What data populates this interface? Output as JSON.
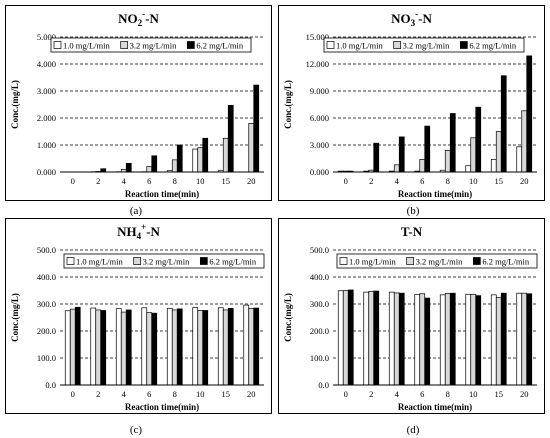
{
  "legend_labels": [
    "1.0 mg/L/min",
    "3.2 mg/L/min",
    "6.2 mg/L/min"
  ],
  "series_fills": [
    "#ffffff",
    "#d9d9d9",
    "#000000"
  ],
  "chart_data": [
    {
      "type": "bar",
      "title": "NO",
      "title_sub": "2",
      "title_sup": "-",
      "title_tail": "-N",
      "caption": "(a)",
      "xlabel": "Reaction time(min)",
      "ylabel": "Conc.(mg/L)",
      "categories": [
        "0",
        "2",
        "4",
        "6",
        "8",
        "10",
        "15",
        "20"
      ],
      "ylim": [
        0,
        5
      ],
      "yticks": [
        "0.000",
        "1.000",
        "2.000",
        "3.000",
        "4.000",
        "5.000"
      ],
      "grid": true,
      "legend_placement": "top-left",
      "series": [
        {
          "name": "1.0 mg/L/min",
          "values": [
            0.0,
            0.01,
            0.01,
            0.01,
            0.05,
            0.85,
            0.05,
            0.0
          ]
        },
        {
          "name": "3.2 mg/L/min",
          "values": [
            0.0,
            0.02,
            0.1,
            0.2,
            0.45,
            0.9,
            1.25,
            1.8
          ]
        },
        {
          "name": "6.2 mg/L/min",
          "values": [
            0.0,
            0.12,
            0.32,
            0.6,
            1.0,
            1.25,
            2.47,
            3.22
          ]
        }
      ]
    },
    {
      "type": "bar",
      "title": "NO",
      "title_sub": "3",
      "title_sup": "-",
      "title_tail": "-N",
      "caption": "(b)",
      "xlabel": "Reaction time(min)",
      "ylabel": "Conc.(mg/L)",
      "categories": [
        "0",
        "2",
        "4",
        "6",
        "8",
        "10",
        "15",
        "20"
      ],
      "ylim": [
        0,
        15
      ],
      "yticks": [
        "0.000",
        "3.000",
        "6.000",
        "9.000",
        "12.000",
        "15.000"
      ],
      "grid": true,
      "legend_placement": "top-left",
      "series": [
        {
          "name": "1.0 mg/L/min",
          "values": [
            0.1,
            0.1,
            0.1,
            0.1,
            0.2,
            0.7,
            1.4,
            2.8
          ]
        },
        {
          "name": "3.2 mg/L/min",
          "values": [
            0.1,
            0.2,
            0.8,
            1.4,
            2.4,
            3.8,
            4.5,
            6.8
          ]
        },
        {
          "name": "6.2 mg/L/min",
          "values": [
            0.1,
            3.2,
            3.9,
            5.1,
            6.5,
            7.2,
            10.7,
            12.9
          ]
        }
      ]
    },
    {
      "type": "bar",
      "title": "NH",
      "title_sub": "4",
      "title_sup": "+",
      "title_tail": "-N",
      "caption": "(c)",
      "xlabel": "Reaction time(min)",
      "ylabel": "Conc.(mg/L)",
      "categories": [
        "0",
        "2",
        "4",
        "6",
        "8",
        "10",
        "15",
        "20"
      ],
      "ylim": [
        0,
        500
      ],
      "yticks": [
        "0.0",
        "100.0",
        "200.0",
        "300.0",
        "400.0",
        "500.0"
      ],
      "grid": true,
      "legend_placement": "top",
      "series": [
        {
          "name": "1.0 mg/L/min",
          "values": [
            275,
            285,
            283,
            286,
            284,
            287,
            286,
            296
          ]
        },
        {
          "name": "3.2 mg/L/min",
          "values": [
            281,
            278,
            270,
            268,
            278,
            276,
            278,
            284
          ]
        },
        {
          "name": "6.2 mg/L/min",
          "values": [
            288,
            276,
            278,
            266,
            282,
            276,
            284,
            285
          ]
        }
      ]
    },
    {
      "type": "bar",
      "title": "T-N",
      "title_sub": "",
      "title_sup": "",
      "title_tail": "",
      "caption": "(d)",
      "xlabel": "Reaction time(min)",
      "ylabel": "Conc.(mg/L)",
      "categories": [
        "0",
        "2",
        "4",
        "6",
        "8",
        "10",
        "15",
        "20"
      ],
      "ylim": [
        0,
        500
      ],
      "yticks": [
        "0.0",
        "100.0",
        "200.0",
        "300.0",
        "400.0",
        "500.0"
      ],
      "grid": true,
      "legend_placement": "top",
      "series": [
        {
          "name": "1.0 mg/L/min",
          "values": [
            349,
            344,
            344,
            335,
            334,
            336,
            334,
            340
          ]
        },
        {
          "name": "3.2 mg/L/min",
          "values": [
            350,
            347,
            341,
            338,
            339,
            336,
            324,
            340
          ]
        },
        {
          "name": "6.2 mg/L/min",
          "values": [
            352,
            348,
            340,
            322,
            340,
            331,
            340,
            338
          ]
        }
      ]
    }
  ]
}
